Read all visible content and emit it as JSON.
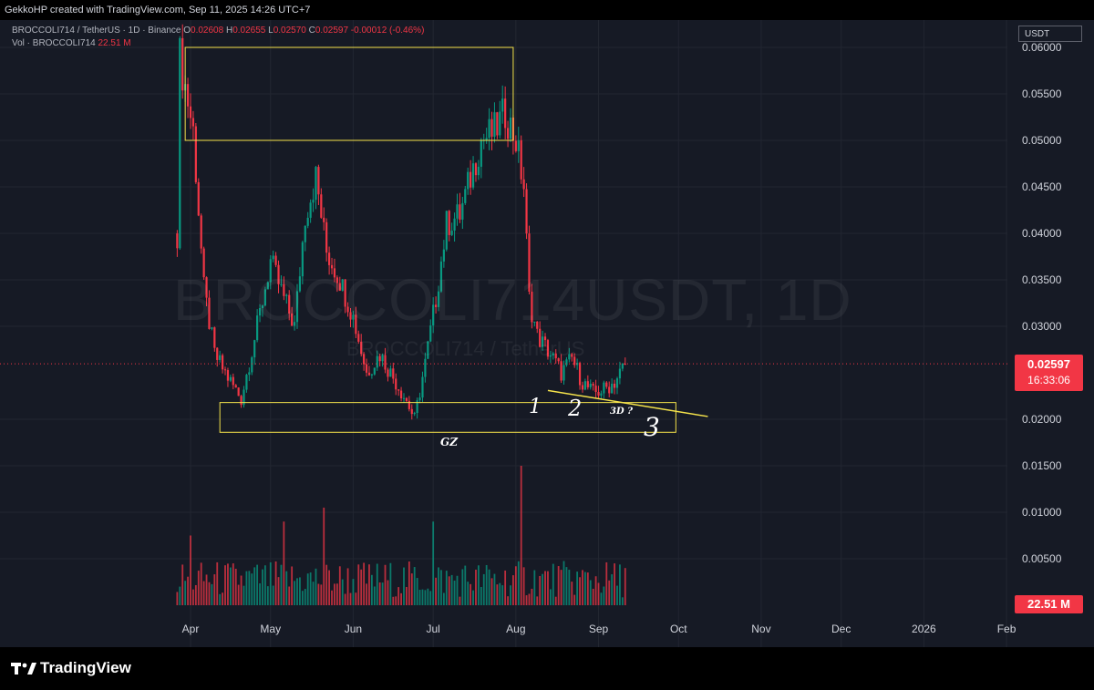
{
  "header": {
    "attribution": "GekkoHP created with TradingView.com, Sep 11, 2025 14:26 UTC+7"
  },
  "legend": {
    "symbol_line": "BROCCOLI714 / TetherUS · 1D · Binance",
    "open_label": "O",
    "open_value": "0.02608",
    "high_label": "H",
    "high_value": "0.02655",
    "low_label": "L",
    "low_value": "0.02570",
    "close_label": "C",
    "close_value": "0.02597",
    "change": "-0.00012 (-0.46%)",
    "volume_label": "Vol · BROCCOLI714",
    "volume_value": "22.51 M"
  },
  "watermark": {
    "symbol": "BROCCOLI714USDT, 1D",
    "name": "BROCCOLI714 / TetherUS"
  },
  "price_axis": {
    "currency": "USDT",
    "current_price": "0.02597",
    "countdown": "16:33:06",
    "volume_tag": "22.51 M"
  },
  "annotations": {
    "zone_label": "GZ",
    "mark_1": "1",
    "mark_2": "2",
    "mark_3": "3",
    "note_3d": "3D ?"
  },
  "footer": {
    "brand": "TradingView"
  },
  "colors": {
    "up": "#089981",
    "down": "#f23645",
    "zone_outline": "#f5e34b",
    "background": "#161a25",
    "grid": "#222631"
  },
  "chart_data": {
    "type": "candlestick",
    "title": "",
    "xlabel": "",
    "ylabel": "",
    "ylim": [
      0.01,
      0.061
    ],
    "x_ticks": [
      "Apr",
      "May",
      "Jun",
      "Jul",
      "Aug",
      "Sep",
      "Oct",
      "Nov",
      "Dec",
      "2026",
      "Feb"
    ],
    "y_ticks": [
      "0.06000",
      "0.05500",
      "0.05000",
      "0.04500",
      "0.04000",
      "0.03500",
      "0.03000",
      "0.02000",
      "0.01500",
      "0.01000",
      "0.00500"
    ],
    "grid": true,
    "series_close": [
      {
        "date": "2025-03-27",
        "close": 0.04
      },
      {
        "date": "2025-03-28",
        "close": 0.059
      },
      {
        "date": "2025-04-02",
        "close": 0.051
      },
      {
        "date": "2025-04-06",
        "close": 0.034
      },
      {
        "date": "2025-04-10",
        "close": 0.027
      },
      {
        "date": "2025-04-15",
        "close": 0.0245
      },
      {
        "date": "2025-04-20",
        "close": 0.0222
      },
      {
        "date": "2025-04-26",
        "close": 0.03
      },
      {
        "date": "2025-05-01",
        "close": 0.037
      },
      {
        "date": "2025-05-06",
        "close": 0.033
      },
      {
        "date": "2025-05-10",
        "close": 0.03
      },
      {
        "date": "2025-05-14",
        "close": 0.042
      },
      {
        "date": "2025-05-18",
        "close": 0.046
      },
      {
        "date": "2025-05-22",
        "close": 0.038
      },
      {
        "date": "2025-05-27",
        "close": 0.035
      },
      {
        "date": "2025-06-01",
        "close": 0.031
      },
      {
        "date": "2025-06-06",
        "close": 0.025
      },
      {
        "date": "2025-06-11",
        "close": 0.027
      },
      {
        "date": "2025-06-17",
        "close": 0.024
      },
      {
        "date": "2025-06-21",
        "close": 0.022
      },
      {
        "date": "2025-06-24",
        "close": 0.02
      },
      {
        "date": "2025-06-28",
        "close": 0.026
      },
      {
        "date": "2025-07-02",
        "close": 0.033
      },
      {
        "date": "2025-07-06",
        "close": 0.041
      },
      {
        "date": "2025-07-11",
        "close": 0.042
      },
      {
        "date": "2025-07-15",
        "close": 0.046
      },
      {
        "date": "2025-07-19",
        "close": 0.05
      },
      {
        "date": "2025-07-24",
        "close": 0.051
      },
      {
        "date": "2025-07-28",
        "close": 0.053
      },
      {
        "date": "2025-08-01",
        "close": 0.05
      },
      {
        "date": "2025-08-04",
        "close": 0.045
      },
      {
        "date": "2025-08-06",
        "close": 0.033
      },
      {
        "date": "2025-08-09",
        "close": 0.029
      },
      {
        "date": "2025-08-14",
        "close": 0.027
      },
      {
        "date": "2025-08-18",
        "close": 0.025
      },
      {
        "date": "2025-08-22",
        "close": 0.0265
      },
      {
        "date": "2025-08-26",
        "close": 0.024
      },
      {
        "date": "2025-08-30",
        "close": 0.0228
      },
      {
        "date": "2025-09-03",
        "close": 0.0232
      },
      {
        "date": "2025-09-07",
        "close": 0.024
      },
      {
        "date": "2025-09-11",
        "close": 0.02597
      }
    ],
    "volume_close": [
      {
        "date": "2025-04-01",
        "volume": 0.0075
      },
      {
        "date": "2025-05-06",
        "volume": 0.009
      },
      {
        "date": "2025-05-21",
        "volume": 0.0105
      },
      {
        "date": "2025-07-01",
        "volume": 0.009
      },
      {
        "date": "2025-08-03",
        "volume": 0.015
      },
      {
        "date": "2025-09-11",
        "volume": 0.004
      }
    ],
    "zones": [
      {
        "name": "upper",
        "from": "2025-03-30",
        "to": "2025-07-31",
        "low": 0.05,
        "high": 0.06
      },
      {
        "name": "GZ",
        "from": "2025-04-12",
        "to": "2025-09-30",
        "low": 0.0186,
        "high": 0.0218
      }
    ],
    "trendline": [
      {
        "date": "2025-08-13",
        "price": 0.0231
      },
      {
        "date": "2025-10-12",
        "price": 0.0203
      }
    ]
  }
}
